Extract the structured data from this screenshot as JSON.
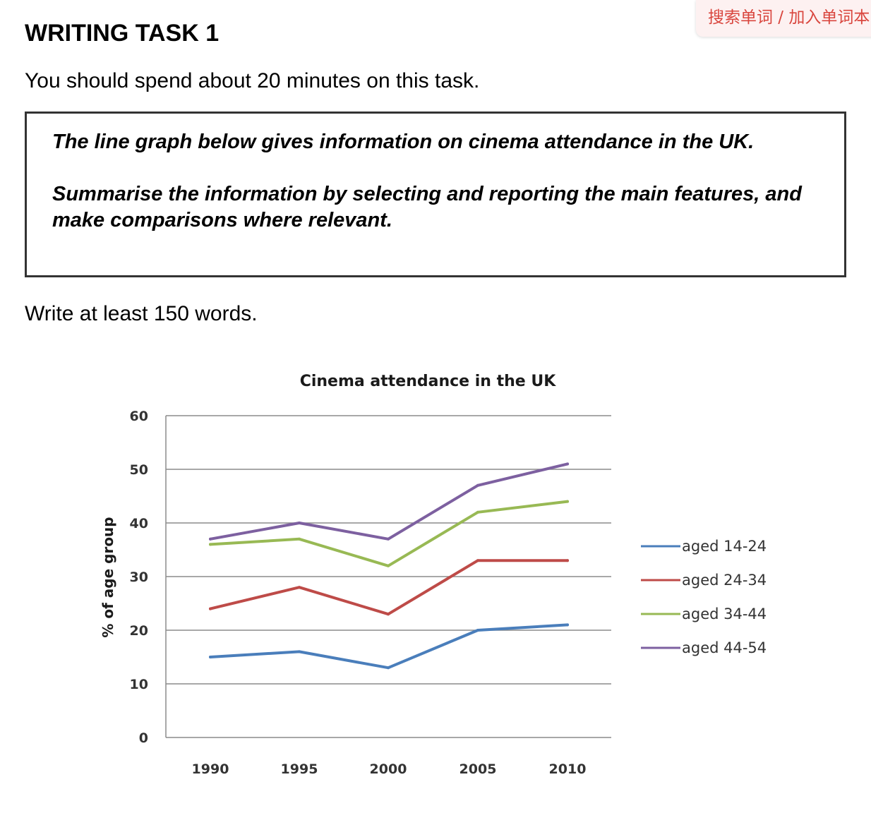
{
  "task": {
    "title": "WRITING TASK 1",
    "instruction": "You should spend about 20 minutes on this task.",
    "prompt_line1": "The line graph below gives information on cinema attendance in the UK.",
    "prompt_line2": "Summarise the information by selecting and reporting the main features, and make comparisons where relevant.",
    "word_count": "Write at least 150 words."
  },
  "lookup": {
    "label": "搜索单词 / 加入单词本"
  },
  "chart_data": {
    "type": "line",
    "title": "Cinema attendance in the UK",
    "ylabel": "% of age group",
    "xlabel": "",
    "categories": [
      "1990",
      "1995",
      "2000",
      "2005",
      "2010"
    ],
    "ylim": [
      0,
      60
    ],
    "yticks": [
      "0",
      "10",
      "20",
      "30",
      "40",
      "50",
      "60"
    ],
    "grid": true,
    "legend": "right",
    "series": [
      {
        "name": "aged 14-24",
        "color": "#4a7ebb",
        "values": [
          15,
          16,
          13,
          20,
          21
        ]
      },
      {
        "name": "aged 24-34",
        "color": "#be4b48",
        "values": [
          24,
          28,
          23,
          33,
          33
        ]
      },
      {
        "name": "aged 34-44",
        "color": "#98b954",
        "values": [
          36,
          37,
          32,
          42,
          44
        ]
      },
      {
        "name": "aged 44-54",
        "color": "#7d60a0",
        "values": [
          37,
          40,
          37,
          47,
          51
        ]
      }
    ]
  }
}
